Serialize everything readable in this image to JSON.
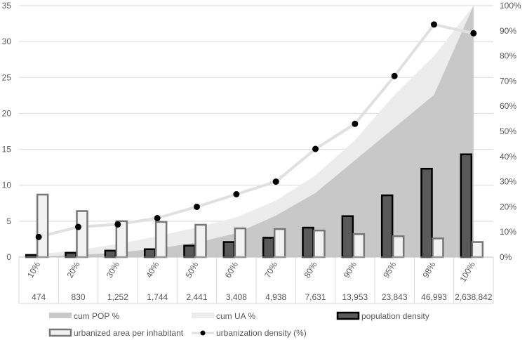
{
  "chart_data": {
    "type": "bar",
    "categories": [
      "10%",
      "20%",
      "30%",
      "40%",
      "50%",
      "60%",
      "70%",
      "80%",
      "90%",
      "95%",
      "98%",
      "100%"
    ],
    "sub_categories": [
      "474",
      "830",
      "1,252",
      "1,744",
      "2,441",
      "3,408",
      "4,938",
      "7,631",
      "13,953",
      "23,843",
      "46,993",
      "2,638,842"
    ],
    "y_left": {
      "min": 0,
      "max": 35,
      "ticks": [
        "0",
        "5",
        "10",
        "15",
        "20",
        "25",
        "30",
        "35"
      ],
      "tick_values": [
        0,
        5,
        10,
        15,
        20,
        25,
        30,
        35
      ]
    },
    "y_right": {
      "min": 0,
      "max": 100,
      "ticks": [
        "0%",
        "10%",
        "20%",
        "30%",
        "40%",
        "50%",
        "60%",
        "70%",
        "80%",
        "90%",
        "100%"
      ],
      "tick_values": [
        0,
        10,
        20,
        30,
        40,
        50,
        60,
        70,
        80,
        90,
        100
      ]
    },
    "grid": true,
    "legend_position": "bottom",
    "series": [
      {
        "name": "cum POP %",
        "kind": "area",
        "axis": "right",
        "color": "#c8c8c8",
        "values": [
          0.3,
          0.8,
          1.8,
          3.4,
          5.8,
          9.5,
          16.5,
          25.5,
          38.5,
          51.5,
          64.5,
          100
        ]
      },
      {
        "name": "cum UA %",
        "kind": "area",
        "axis": "right",
        "color": "#ececec",
        "values": [
          1.2,
          2.8,
          5.2,
          8.3,
          11.8,
          15.8,
          22.5,
          32.5,
          46.5,
          64.5,
          80,
          100
        ]
      },
      {
        "name": "population density",
        "kind": "bar",
        "axis": "left",
        "color": "#595959",
        "stroke": "#000000",
        "values": [
          0.3,
          0.6,
          0.9,
          1.1,
          1.6,
          2.1,
          2.7,
          4.1,
          5.7,
          8.6,
          12.3,
          14.3
        ]
      },
      {
        "name": "urbanized area per inhabitant",
        "kind": "bar",
        "axis": "left",
        "color": "#f2f2f2",
        "stroke": "#767676",
        "values": [
          8.7,
          6.4,
          5.0,
          4.9,
          4.5,
          4.0,
          3.9,
          3.7,
          3.2,
          2.9,
          2.6,
          2.1
        ]
      },
      {
        "name": "urbanization density (%)",
        "kind": "line-markers",
        "axis": "right",
        "color": "#e0e0e0",
        "marker": "#000000",
        "values": [
          8,
          12,
          13,
          15.5,
          20,
          25,
          30,
          43,
          53,
          72,
          92.5,
          89
        ]
      }
    ]
  }
}
